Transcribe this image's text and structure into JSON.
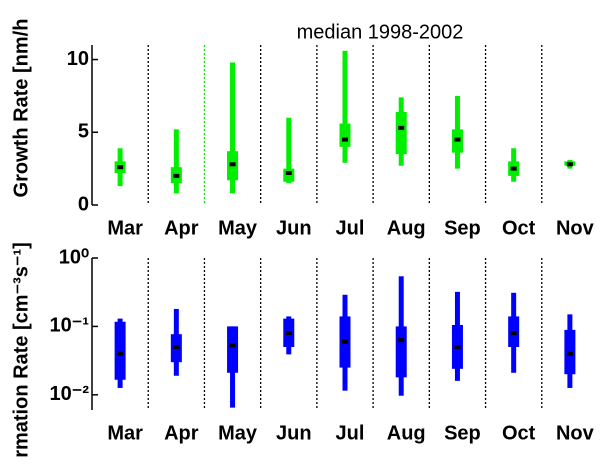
{
  "chart_data": [
    {
      "type": "box",
      "title": "median 1998-2002",
      "ylabel": "Growth Rate [nm/h",
      "categories": [
        "Mar",
        "Apr",
        "May",
        "Jun",
        "Jul",
        "Aug",
        "Sep",
        "Oct",
        "Nov"
      ],
      "color": "#00ee00",
      "low": [
        1.3,
        0.8,
        0.8,
        1.5,
        2.9,
        2.7,
        2.5,
        1.6,
        2.5
      ],
      "q1": [
        2.2,
        1.5,
        1.7,
        1.6,
        4.0,
        3.5,
        3.6,
        2.0,
        2.7
      ],
      "median": [
        2.6,
        2.0,
        2.8,
        2.2,
        4.5,
        5.3,
        4.5,
        2.5,
        2.8
      ],
      "q3": [
        3.0,
        2.6,
        3.7,
        2.5,
        5.6,
        6.4,
        5.2,
        3.0,
        3.0
      ],
      "high": [
        3.9,
        5.2,
        9.8,
        6.0,
        10.6,
        7.4,
        7.5,
        3.9,
        3.1
      ],
      "ylim": [
        0,
        11
      ],
      "yticks": [
        0,
        5,
        10
      ]
    },
    {
      "type": "box",
      "ylabel": "rmation Rate [cm⁻³s⁻¹]",
      "log": true,
      "categories": [
        "Mar",
        "Apr",
        "May",
        "Jun",
        "Jul",
        "Aug",
        "Sep",
        "Oct",
        "Nov"
      ],
      "color": "#0000ff",
      "low": [
        0.0126,
        0.019,
        0.0065,
        0.039,
        0.0115,
        0.0097,
        0.016,
        0.021,
        0.0126
      ],
      "q1": [
        0.0166,
        0.03,
        0.021,
        0.05,
        0.025,
        0.018,
        0.024,
        0.05,
        0.02
      ],
      "median": [
        0.04,
        0.05,
        0.053,
        0.08,
        0.06,
        0.063,
        0.05,
        0.08,
        0.04
      ],
      "q3": [
        0.117,
        0.077,
        0.1,
        0.13,
        0.14,
        0.1,
        0.105,
        0.14,
        0.089
      ],
      "high": [
        0.13,
        0.18,
        0.1,
        0.14,
        0.29,
        0.54,
        0.32,
        0.31,
        0.15
      ],
      "ylim": [
        0.006,
        1
      ],
      "yticks": [
        {
          "value": 0.01,
          "label": "10⁻²"
        },
        {
          "value": 0.1,
          "label": "10⁻¹"
        },
        {
          "value": 1,
          "label": "10⁰"
        }
      ]
    }
  ]
}
